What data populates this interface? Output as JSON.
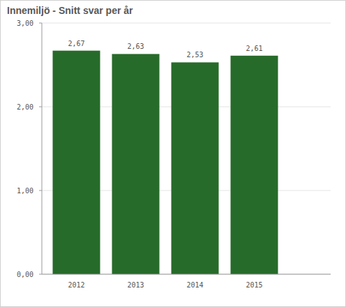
{
  "chart_data": {
    "type": "bar",
    "title": "Innemiljö - Snitt svar per år",
    "categories": [
      "2012",
      "2013",
      "2014",
      "2015"
    ],
    "values": [
      2.67,
      2.63,
      2.53,
      2.61
    ],
    "value_labels": [
      "2,67",
      "2,63",
      "2,53",
      "2,61"
    ],
    "color": "#276b2a",
    "ylim": [
      0,
      3
    ],
    "yticks": [
      {
        "value": 0,
        "label": "0,00"
      },
      {
        "value": 1,
        "label": "1,00"
      },
      {
        "value": 2,
        "label": "2,00"
      },
      {
        "value": 3,
        "label": "3,00"
      }
    ],
    "grid": true,
    "data_labels": true
  }
}
